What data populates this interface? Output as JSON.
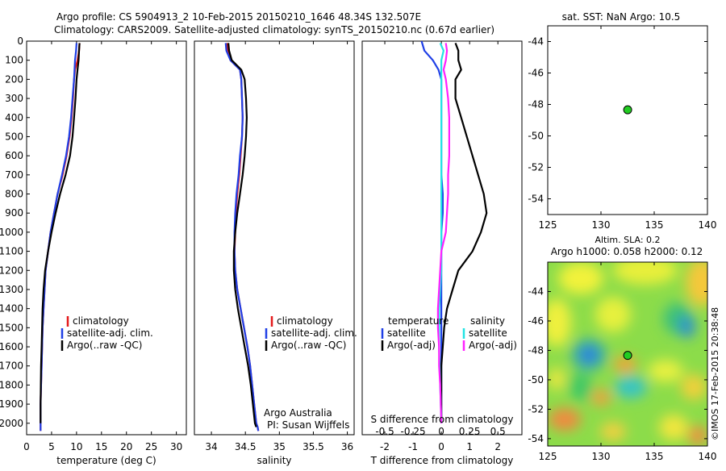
{
  "title": {
    "line1": "Argo profile: CS 5904913_2 10-Feb-2015 20150210_1646 48.34S 132.507E",
    "line2": "Climatology: CARS2009. Satellite-adjusted climatology: synTS_20150210.nc (0.67d earlier)"
  },
  "credit": "Argo Australia",
  "pi": "PI: Susan Wijffels",
  "imos": "©IMOS 17-Feb-2015 20:38:48",
  "colors": {
    "climatology": "#e41a1c",
    "satellite": "#1f3fe6",
    "argo": "#000000",
    "sal_satellite": "#21e3e3",
    "sal_argo": "#ff20ff",
    "dot": "#22cc22"
  },
  "chart_data": [
    {
      "id": "temperature",
      "type": "line",
      "xlabel": "temperature (deg C)",
      "xlim": [
        0,
        32
      ],
      "ylim": [
        2060,
        0
      ],
      "xticks": [
        0,
        5,
        10,
        15,
        20,
        25,
        30
      ],
      "yticks": [
        0,
        100,
        200,
        300,
        400,
        500,
        600,
        700,
        800,
        900,
        1000,
        1100,
        1200,
        1300,
        1400,
        1500,
        1600,
        1700,
        1800,
        1900,
        2000
      ],
      "legend": [
        "climatology",
        "satellite-adj. clim.",
        "Argo(..raw -QC)"
      ],
      "series": [
        {
          "name": "climatology",
          "color_key": "climatology",
          "x": [
            10.6,
            10.5,
            10.2,
            9.7,
            9.5,
            9.3,
            9.0,
            8.6,
            8.0,
            7.2,
            6.2,
            5.5,
            4.8,
            4.3,
            3.8,
            3.6,
            3.4,
            3.2,
            3.1,
            3.0,
            2.9,
            2.8,
            2.8
          ],
          "y": [
            10,
            50,
            100,
            150,
            200,
            300,
            400,
            500,
            600,
            700,
            800,
            900,
            1000,
            1100,
            1200,
            1300,
            1400,
            1500,
            1600,
            1700,
            1800,
            1900,
            2040
          ]
        },
        {
          "name": "satellite-adj. clim.",
          "color_key": "satellite",
          "x": [
            10.0,
            9.9,
            9.7,
            9.6,
            9.5,
            9.2,
            8.9,
            8.5,
            7.9,
            7.1,
            6.2,
            5.5,
            4.8,
            4.3,
            3.8,
            3.6,
            3.4,
            3.2,
            3.1,
            3.0,
            2.9,
            2.8,
            2.8
          ],
          "y": [
            10,
            50,
            100,
            150,
            200,
            300,
            400,
            500,
            600,
            700,
            800,
            900,
            1000,
            1100,
            1200,
            1300,
            1400,
            1500,
            1600,
            1700,
            1800,
            1900,
            2040
          ]
        },
        {
          "name": "Argo(..raw -QC)",
          "color_key": "argo",
          "x": [
            10.6,
            10.5,
            10.4,
            10.2,
            10.0,
            9.8,
            9.5,
            9.2,
            8.7,
            7.8,
            6.7,
            5.8,
            5.0,
            4.3,
            3.7,
            3.4,
            3.2,
            3.1,
            3.0,
            2.9,
            2.85,
            2.8,
            2.8
          ],
          "y": [
            10,
            50,
            100,
            150,
            200,
            300,
            400,
            500,
            600,
            700,
            800,
            900,
            1000,
            1100,
            1200,
            1300,
            1400,
            1500,
            1600,
            1700,
            1800,
            1900,
            2000
          ]
        }
      ]
    },
    {
      "id": "salinity",
      "type": "line",
      "xlabel": "salinity",
      "xlim": [
        33.75,
        36.1
      ],
      "ylim": [
        2060,
        0
      ],
      "xticks": [
        34,
        34.5,
        35,
        35.5,
        36
      ],
      "xticklabels": [
        "34",
        "34.5",
        "35",
        "35.5",
        "36"
      ],
      "legend": [
        "climatology",
        "satellite-adj. clim.",
        "Argo(..raw -QC)"
      ],
      "series": [
        {
          "name": "climatology",
          "color_key": "climatology",
          "x": [
            34.23,
            34.24,
            34.28,
            34.42,
            34.44,
            34.45,
            34.46,
            34.45,
            34.43,
            34.41,
            34.38,
            34.36,
            34.35,
            34.34,
            34.35,
            34.38,
            34.43,
            34.48,
            34.53,
            34.57,
            34.6,
            34.63,
            34.66,
            34.68,
            34.69
          ],
          "y": [
            10,
            50,
            100,
            150,
            200,
            300,
            400,
            500,
            600,
            700,
            800,
            900,
            1000,
            1100,
            1200,
            1300,
            1400,
            1500,
            1600,
            1700,
            1800,
            1900,
            2000,
            2020,
            2040
          ]
        },
        {
          "name": "satellite-adj. clim.",
          "color_key": "satellite",
          "x": [
            34.21,
            34.22,
            34.28,
            34.42,
            34.44,
            34.45,
            34.46,
            34.45,
            34.42,
            34.4,
            34.37,
            34.35,
            34.34,
            34.34,
            34.35,
            34.38,
            34.43,
            34.48,
            34.53,
            34.57,
            34.6,
            34.63,
            34.66,
            34.68,
            34.69
          ],
          "y": [
            10,
            50,
            100,
            150,
            200,
            300,
            400,
            500,
            600,
            700,
            800,
            900,
            1000,
            1100,
            1200,
            1300,
            1400,
            1500,
            1600,
            1700,
            1800,
            1900,
            2000,
            2020,
            2040
          ]
        },
        {
          "name": "Argo(..raw -QC)",
          "color_key": "argo",
          "x": [
            34.25,
            34.26,
            34.3,
            34.44,
            34.49,
            34.51,
            34.52,
            34.51,
            34.49,
            34.46,
            34.42,
            34.38,
            34.35,
            34.33,
            34.33,
            34.35,
            34.39,
            34.44,
            34.49,
            34.54,
            34.58,
            34.61,
            34.64,
            34.66
          ],
          "y": [
            10,
            50,
            100,
            150,
            200,
            300,
            400,
            500,
            600,
            700,
            800,
            900,
            1000,
            1100,
            1200,
            1300,
            1400,
            1500,
            1600,
            1700,
            1800,
            1900,
            2000,
            2020
          ]
        }
      ]
    },
    {
      "id": "difference",
      "type": "line",
      "xlabel": "T difference from climatology",
      "xlabel2": "S difference from climatology",
      "xlim": [
        -2.8,
        2.85
      ],
      "ylim": [
        2060,
        0
      ],
      "xticks": [
        -2,
        -1,
        0,
        1,
        2
      ],
      "xticks_S": [
        -0.5,
        -0.25,
        0,
        0.25,
        0.5
      ],
      "xticklabels_S": [
        "-0.5",
        "-0.25",
        "0",
        "0.25",
        "0.5"
      ],
      "legend_groups": [
        {
          "header": "temperature",
          "items": [
            "satellite",
            "Argo(-adj)"
          ]
        },
        {
          "header": "salinity",
          "items": [
            "satellite",
            "Argo(-adj)"
          ]
        }
      ],
      "series": [
        {
          "name": "temperature satellite",
          "color_key": "satellite",
          "x": [
            -0.7,
            -0.6,
            -0.3,
            -0.1,
            0.0,
            0.0,
            0.0,
            0.0,
            0.0,
            0.0,
            0.05,
            0.05,
            0.0,
            0.0,
            0.0,
            0.0,
            0.0,
            0.0,
            0.0,
            0.0,
            0.0,
            0.0,
            0.0
          ],
          "y": [
            0,
            50,
            100,
            150,
            200,
            300,
            400,
            500,
            600,
            700,
            800,
            900,
            1000,
            1100,
            1200,
            1300,
            1400,
            1500,
            1600,
            1700,
            1800,
            1900,
            2000
          ]
        },
        {
          "name": "temperature Argo(-adj)",
          "color_key": "argo",
          "x": [
            0.5,
            0.6,
            0.6,
            0.7,
            0.5,
            0.5,
            0.7,
            0.9,
            1.1,
            1.3,
            1.5,
            1.6,
            1.4,
            1.1,
            0.6,
            0.4,
            0.2,
            0.1,
            0.05,
            0.0,
            0.0,
            0.0,
            0.0
          ],
          "y": [
            10,
            50,
            100,
            150,
            200,
            300,
            400,
            500,
            600,
            700,
            800,
            900,
            1000,
            1100,
            1200,
            1300,
            1400,
            1500,
            1600,
            1700,
            1800,
            1900,
            2000
          ]
        },
        {
          "name": "salinity satellite",
          "color_key": "sal_satellite",
          "x": [
            -0.01,
            0.02,
            0.0,
            0.0,
            0.0,
            0.0,
            0.0,
            0.0,
            0.0,
            0.0,
            0.0,
            0.0,
            0.0,
            0.0,
            0.0,
            -0.01,
            -0.02,
            -0.02,
            -0.02,
            -0.01,
            0.0
          ],
          "y": [
            10,
            50,
            100,
            150,
            200,
            300,
            400,
            500,
            600,
            700,
            800,
            900,
            1000,
            1100,
            1200,
            1300,
            1400,
            1500,
            1600,
            1800,
            2000
          ]
        },
        {
          "name": "salinity Argo(-adj)",
          "color_key": "sal_argo",
          "x": [
            0.04,
            0.05,
            0.04,
            0.02,
            0.04,
            0.06,
            0.07,
            0.07,
            0.07,
            0.06,
            0.06,
            0.05,
            0.04,
            0.0,
            -0.01,
            -0.02,
            -0.03,
            -0.03,
            -0.02,
            -0.02,
            -0.01,
            0.0
          ],
          "y": [
            10,
            50,
            100,
            150,
            200,
            300,
            400,
            500,
            600,
            700,
            800,
            900,
            1000,
            1100,
            1200,
            1300,
            1400,
            1500,
            1600,
            1700,
            1800,
            2000
          ]
        }
      ]
    },
    {
      "id": "location",
      "type": "scatter",
      "title": "sat. SST: NaN Argo: 10.5",
      "xlim": [
        125,
        140
      ],
      "ylim": [
        -55,
        -43
      ],
      "xticks": [
        125,
        130,
        135,
        140
      ],
      "yticks": [
        -44,
        -46,
        -48,
        -50,
        -52,
        -54
      ],
      "points": [
        {
          "x": 132.507,
          "y": -48.34
        }
      ]
    },
    {
      "id": "sla_map",
      "type": "heatmap",
      "title": "Altim. SLA: 0.2",
      "subtitle": "Argo h1000: 0.058 h2000: 0.12",
      "xlim": [
        125,
        140
      ],
      "ylim": [
        -54.5,
        -42
      ],
      "xticks": [
        125,
        130,
        135,
        140
      ],
      "yticks": [
        -44,
        -46,
        -48,
        -50,
        -52,
        -54
      ],
      "points": [
        {
          "x": 132.507,
          "y": -48.34
        }
      ]
    }
  ]
}
